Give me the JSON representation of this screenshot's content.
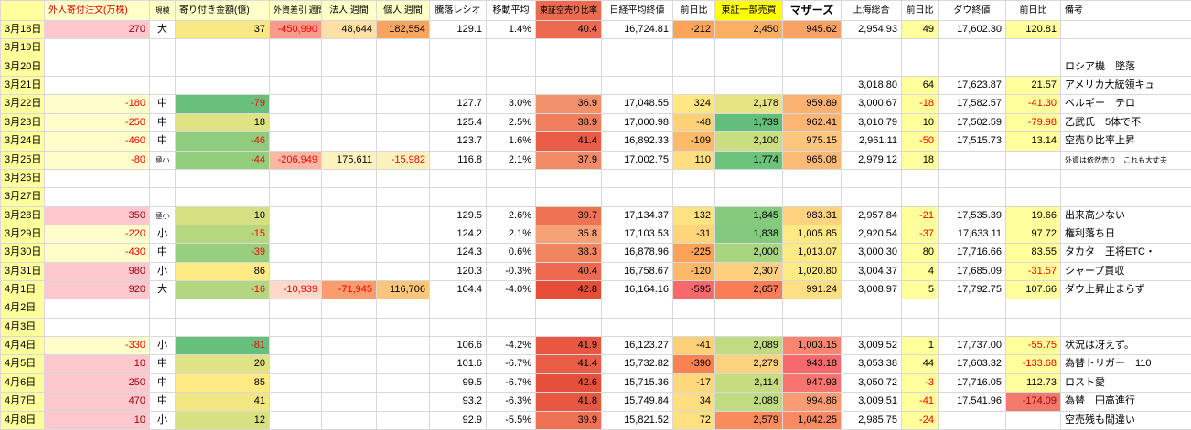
{
  "sheet": {
    "date_column_bg": "#ffff9c",
    "header": [
      {
        "t": ""
      },
      {
        "t": "外人寄付注文(万株)",
        "bg": "#ffffc8",
        "fg": "#e00000",
        "align": "left",
        "fs": 10
      },
      {
        "t": "規模",
        "bg": "#ffffc8",
        "sm": true
      },
      {
        "t": "寄り付き金額(億)",
        "bg": "#ffffc8",
        "align": "left",
        "fs": 10
      },
      {
        "t": "外資差引 週間",
        "bg": "#ffffc8",
        "fs": 9
      },
      {
        "t": "法人 週間",
        "bg": "#ffffc8",
        "fs": 10
      },
      {
        "t": "個人 週間",
        "bg": "#ffffc8",
        "fs": 10
      },
      {
        "t": "騰落レシオ",
        "fs": 10
      },
      {
        "t": "移動平均",
        "fs": 10
      },
      {
        "t": "東証空売り比率",
        "bg": "#ec6a4f",
        "fs": 9
      },
      {
        "t": "日経平均終値",
        "fs": 10
      },
      {
        "t": "前日比",
        "fs": 10
      },
      {
        "t": "東証一部売買",
        "bg": "#ffff00",
        "fs": 10
      },
      {
        "t": "マザーズ",
        "fs": 12,
        "bold": true
      },
      {
        "t": "上海総合",
        "fs": 10
      },
      {
        "t": "前日比",
        "fs": 10
      },
      {
        "t": "ダウ終値",
        "fs": 10
      },
      {
        "t": "前日比",
        "fs": 10
      },
      {
        "t": "備考",
        "align": "left",
        "fs": 10
      }
    ],
    "rows": [
      [
        "3月18日",
        {
          "t": "270",
          "bg": "#ffc7ce",
          "fg": "#9c0006"
        },
        "大",
        {
          "t": "37",
          "bg": "#f7e883"
        },
        {
          "t": "-450,990",
          "bg": "#f99b8b",
          "fg": "#ff0000"
        },
        {
          "t": "48,644",
          "bg": "#fee0a7"
        },
        {
          "t": "182,554",
          "bg": "#f9a55f"
        },
        "129.1",
        "1.4%",
        {
          "t": "40.4",
          "bg": "#ec6a50"
        },
        "16,724.81",
        {
          "t": "-212",
          "bg": "#fba55c"
        },
        {
          "t": "2,450",
          "bg": "#fcaf60"
        },
        {
          "t": "945.62",
          "bg": "#faa263"
        },
        "2,954.93",
        {
          "t": "49",
          "bg": "#ffff9c"
        },
        "17,602.30",
        {
          "t": "120.81",
          "bg": "#ffff9c"
        },
        null
      ],
      [
        "3月19日",
        null,
        null,
        null,
        null,
        null,
        null,
        null,
        null,
        null,
        null,
        null,
        null,
        null,
        null,
        null,
        null,
        null,
        null
      ],
      [
        "3月20日",
        null,
        null,
        null,
        null,
        null,
        null,
        null,
        null,
        null,
        null,
        null,
        null,
        null,
        null,
        null,
        null,
        null,
        "ロシア機　墜落"
      ],
      [
        "3月21日",
        null,
        null,
        null,
        null,
        null,
        null,
        null,
        null,
        null,
        null,
        null,
        null,
        null,
        "3,018.80",
        {
          "t": "64",
          "bg": "#ffff9c"
        },
        "17,623.87",
        {
          "t": "21.57",
          "bg": "#ffff9c"
        },
        "アメリカ大統領キュ"
      ],
      [
        "3月22日",
        {
          "t": "-180",
          "bg": "#ffffcc",
          "fg": "#ff0000"
        },
        "中",
        {
          "t": "-79",
          "bg": "#68c07b",
          "fg": "#ff0000"
        },
        null,
        null,
        null,
        "127.7",
        "3.0%",
        {
          "t": "36.9",
          "bg": "#f2926c"
        },
        "17,048.55",
        {
          "t": "324",
          "bg": "#ffe884"
        },
        {
          "t": "2,178",
          "bg": "#e7e583"
        },
        {
          "t": "959.89",
          "bg": "#fbb271"
        },
        "3,000.67",
        {
          "t": "-18",
          "bg": "#ffff9c",
          "fg": "#ff0000"
        },
        "17,582.57",
        {
          "t": "-41.30",
          "bg": "#ffff9c",
          "fg": "#ff0000"
        },
        "ベルギー　テロ"
      ],
      [
        "3月23日",
        {
          "t": "-250",
          "bg": "#ffffcc",
          "fg": "#ff0000"
        },
        "中",
        {
          "t": "18",
          "bg": "#dfe383"
        },
        null,
        null,
        null,
        "125.4",
        "2.5%",
        {
          "t": "38.9",
          "bg": "#ef7f5d"
        },
        "17,000.98",
        {
          "t": "-48",
          "bg": "#ffd179"
        },
        {
          "t": "1,739",
          "bg": "#63be7b"
        },
        {
          "t": "962.41",
          "bg": "#fbb574"
        },
        "3,010.79",
        {
          "t": "10",
          "bg": "#ffff9c"
        },
        "17,502.59",
        {
          "t": "-79.98",
          "bg": "#ffff9c",
          "fg": "#ff0000"
        },
        "乙武氏　5体で不"
      ],
      [
        "3月24日",
        {
          "t": "-460",
          "bg": "#ffffcc",
          "fg": "#ff0000"
        },
        "中",
        {
          "t": "-46",
          "bg": "#8fcd7e",
          "fg": "#ff0000"
        },
        null,
        null,
        null,
        "123.7",
        "1.6%",
        {
          "t": "41.4",
          "bg": "#e95c45"
        },
        "16,892.33",
        {
          "t": "-109",
          "bg": "#fdbb6a"
        },
        {
          "t": "2,100",
          "bg": "#c8de81"
        },
        {
          "t": "975.15",
          "bg": "#fdc67c"
        },
        "2,961.11",
        {
          "t": "-50",
          "bg": "#ffff9c",
          "fg": "#ff0000"
        },
        "17,515.73",
        {
          "t": "13.14",
          "bg": "#ffff9c"
        },
        "空売り比率上昇"
      ],
      [
        "3月25日",
        {
          "t": "-80",
          "bg": "#ffffcc",
          "fg": "#ff0000"
        },
        {
          "t": "極小",
          "sm": true
        },
        {
          "t": "-44",
          "bg": "#91ce7e",
          "fg": "#ff0000"
        },
        {
          "t": "-206,949",
          "bg": "#fbb6a5",
          "fg": "#ff0000"
        },
        {
          "t": "175,611",
          "bg": "#fff1bd"
        },
        {
          "t": "-15,982",
          "bg": "#fff1bd",
          "fg": "#ff0000"
        },
        "116.8",
        "2.1%",
        {
          "t": "37.9",
          "bg": "#f18a66"
        },
        "17,002.75",
        {
          "t": "110",
          "bg": "#fede81"
        },
        {
          "t": "1,774",
          "bg": "#6cc37c"
        },
        {
          "t": "965.08",
          "bg": "#fcbb75"
        },
        "2,979.12",
        {
          "t": "18",
          "bg": "#ffff9c"
        },
        null,
        null,
        {
          "t": "外資は依然売り　これも大丈夫",
          "sm": true
        }
      ],
      [
        "3月26日",
        null,
        null,
        null,
        null,
        null,
        null,
        null,
        null,
        null,
        null,
        null,
        null,
        null,
        null,
        null,
        null,
        null,
        null
      ],
      [
        "3月27日",
        null,
        null,
        null,
        null,
        null,
        null,
        null,
        null,
        null,
        null,
        null,
        null,
        null,
        null,
        null,
        null,
        null,
        null
      ],
      [
        "3月28日",
        {
          "t": "350",
          "bg": "#ffc7ce",
          "fg": "#9c0006"
        },
        {
          "t": "極小",
          "sm": true
        },
        {
          "t": "10",
          "bg": "#d6e082"
        },
        null,
        null,
        null,
        "129.5",
        "2.6%",
        {
          "t": "39.7",
          "bg": "#ee7355"
        },
        "17,134.37",
        {
          "t": "132",
          "bg": "#ffe382"
        },
        {
          "t": "1,845",
          "bg": "#85cb7e"
        },
        {
          "t": "983.31",
          "bg": "#fed27f"
        },
        "2,957.84",
        {
          "t": "-21",
          "bg": "#ffff9c",
          "fg": "#ff0000"
        },
        "17,535.39",
        {
          "t": "19.66",
          "bg": "#ffff9c"
        },
        "出来高少ない"
      ],
      [
        "3月29日",
        {
          "t": "-220",
          "bg": "#ffffcc",
          "fg": "#ff0000"
        },
        "小",
        {
          "t": "-15",
          "bg": "#b4d780",
          "fg": "#ff0000"
        },
        null,
        null,
        null,
        "124.2",
        "2.1%",
        {
          "t": "35.8",
          "bg": "#f7a177"
        },
        "17,103.53",
        {
          "t": "-31",
          "bg": "#ffd57c"
        },
        {
          "t": "1,838",
          "bg": "#83ca7e"
        },
        {
          "t": "1,005.85",
          "bg": "#ffe984"
        },
        "2,920.54",
        {
          "t": "-37",
          "bg": "#ffff9c",
          "fg": "#ff0000"
        },
        "17,633.11",
        {
          "t": "97.72",
          "bg": "#ffff9c"
        },
        "権利落ち日"
      ],
      [
        "3月30日",
        {
          "t": "-430",
          "bg": "#ffffcc",
          "fg": "#ff0000"
        },
        "中",
        {
          "t": "-39",
          "bg": "#97cf7e",
          "fg": "#ff0000"
        },
        null,
        null,
        null,
        "124.3",
        "0.6%",
        {
          "t": "38.3",
          "bg": "#f0865f"
        },
        "16,878.96",
        {
          "t": "-225",
          "bg": "#fba25a"
        },
        {
          "t": "2,000",
          "bg": "#a9d580"
        },
        {
          "t": "1,013.07",
          "bg": "#fdea84"
        },
        "3,000.30",
        {
          "t": "80",
          "bg": "#ffff9c"
        },
        "17,716.66",
        {
          "t": "83.55",
          "bg": "#ffff9c"
        },
        "タカタ　王将ETC・"
      ],
      [
        "3月31日",
        {
          "t": "980",
          "bg": "#ffc7ce",
          "fg": "#9c0006"
        },
        "小",
        {
          "t": "86",
          "bg": "#ffeb84"
        },
        null,
        null,
        null,
        "120.3",
        "-0.3%",
        {
          "t": "40.4",
          "bg": "#ec6a50"
        },
        "16,758.67",
        {
          "t": "-120",
          "bg": "#fdb968"
        },
        {
          "t": "2,307",
          "bg": "#fed07e"
        },
        {
          "t": "1,020.80",
          "bg": "#ffeb84"
        },
        "3,004.37",
        {
          "t": "4",
          "bg": "#ffff9c"
        },
        "17,685.09",
        {
          "t": "-31.57",
          "bg": "#ffff9c",
          "fg": "#ff0000"
        },
        "シャープ買収"
      ],
      [
        "4月1日",
        {
          "t": "920",
          "bg": "#ffc7ce",
          "fg": "#9c0006"
        },
        "大",
        {
          "t": "-16",
          "bg": "#b3d680",
          "fg": "#ff0000"
        },
        {
          "t": "-10,939",
          "bg": "#fed9cb",
          "fg": "#ff0000"
        },
        {
          "t": "-71,945",
          "bg": "#fa9d6d",
          "fg": "#ff0000"
        },
        {
          "t": "116,706",
          "bg": "#fbc57b"
        },
        "104.4",
        "-4.0%",
        {
          "t": "42.8",
          "bg": "#e54d36"
        },
        "16,164.16",
        {
          "t": "-595",
          "bg": "#f8696b"
        },
        {
          "t": "2,657",
          "bg": "#f97e58"
        },
        {
          "t": "991.24",
          "bg": "#fee083"
        },
        "3,008.97",
        {
          "t": "5",
          "bg": "#ffff9c"
        },
        "17,792.75",
        {
          "t": "107.66",
          "bg": "#ffff9c"
        },
        "ダウ上昇止まらず"
      ],
      [
        "4月2日",
        null,
        null,
        null,
        null,
        null,
        null,
        null,
        null,
        null,
        null,
        null,
        null,
        null,
        null,
        null,
        null,
        null,
        null
      ],
      [
        "4月3日",
        null,
        null,
        null,
        null,
        null,
        null,
        null,
        null,
        null,
        null,
        null,
        null,
        null,
        null,
        null,
        null,
        null,
        null
      ],
      [
        "4月4日",
        {
          "t": "-330",
          "bg": "#ffffcc",
          "fg": "#ff0000"
        },
        "小",
        {
          "t": "-81",
          "bg": "#66bf7b",
          "fg": "#ff0000"
        },
        null,
        null,
        null,
        "106.6",
        "-4.2%",
        {
          "t": "41.9",
          "bg": "#e8573f"
        },
        "16,123.27",
        {
          "t": "-41",
          "bg": "#ffd07a"
        },
        {
          "t": "2,089",
          "bg": "#c0db81"
        },
        {
          "t": "1,003.15",
          "bg": "#f98570"
        },
        "3,009.52",
        {
          "t": "1",
          "bg": "#ffff9c"
        },
        "17,737.00",
        {
          "t": "-55.75",
          "bg": "#ffff9c",
          "fg": "#ff0000"
        },
        "状況は冴えず。"
      ],
      [
        "4月5日",
        {
          "t": "10",
          "bg": "#ffc7ce",
          "fg": "#9c0006"
        },
        "中",
        {
          "t": "20",
          "bg": "#e0e383"
        },
        null,
        null,
        null,
        "101.6",
        "-6.7%",
        {
          "t": "41.4",
          "bg": "#e95c45"
        },
        "15,732.82",
        {
          "t": "-390",
          "bg": "#f98350"
        },
        {
          "t": "2,279",
          "bg": "#fdd27e"
        },
        {
          "t": "943.18",
          "bg": "#f8696b"
        },
        "3,053.38",
        {
          "t": "44",
          "bg": "#ffff9c"
        },
        "17,603.32",
        {
          "t": "-133.68",
          "bg": "#ffff9c",
          "fg": "#ff0000"
        },
        "為替トリガー　110"
      ],
      [
        "4月6日",
        {
          "t": "250",
          "bg": "#ffc7ce",
          "fg": "#9c0006"
        },
        "中",
        {
          "t": "85",
          "bg": "#fee983"
        },
        null,
        null,
        null,
        "99.5",
        "-6.7%",
        {
          "t": "42.6",
          "bg": "#e64f39"
        },
        "15,715.36",
        {
          "t": "-17",
          "bg": "#ffd77d"
        },
        {
          "t": "2,114",
          "bg": "#c6dc81"
        },
        {
          "t": "947.93",
          "bg": "#f87470"
        },
        "3,050.72",
        {
          "t": "-3",
          "bg": "#ffff9c",
          "fg": "#ff0000"
        },
        "17,716.05",
        {
          "t": "112.73",
          "bg": "#ffff9c"
        },
        "ロスト愛"
      ],
      [
        "4月7日",
        {
          "t": "470",
          "bg": "#ffc7ce",
          "fg": "#9c0006"
        },
        "中",
        {
          "t": "41",
          "bg": "#f0e783"
        },
        null,
        null,
        null,
        "93.2",
        "-6.3%",
        {
          "t": "41.8",
          "bg": "#e85841"
        },
        "15,749.84",
        {
          "t": "34",
          "bg": "#ffdd80"
        },
        {
          "t": "2,089",
          "bg": "#c0db81"
        },
        {
          "t": "994.86",
          "bg": "#fa9b73"
        },
        "3,009.51",
        {
          "t": "-41",
          "bg": "#ffff9c",
          "fg": "#ff0000"
        },
        "17,541.96",
        {
          "t": "-174.09",
          "bg": "#f4796d",
          "fg": "#9c0006"
        },
        "為替　円高進行"
      ],
      [
        "4月8日",
        {
          "t": "10",
          "bg": "#ffc7ce",
          "fg": "#9c0006"
        },
        "小",
        {
          "t": "12",
          "bg": "#d8e182"
        },
        null,
        null,
        null,
        "92.9",
        "-5.5%",
        {
          "t": "39.9",
          "bg": "#ee7153"
        },
        "15,821.52",
        {
          "t": "72",
          "bg": "#ffe181"
        },
        {
          "t": "2,579",
          "bg": "#fa8b5c"
        },
        {
          "t": "1,042.25",
          "bg": "#f98a63"
        },
        "2,985.75",
        {
          "t": "-24",
          "bg": "#ffff9c",
          "fg": "#ff0000"
        },
        null,
        null,
        "空売残も間違い"
      ]
    ]
  }
}
